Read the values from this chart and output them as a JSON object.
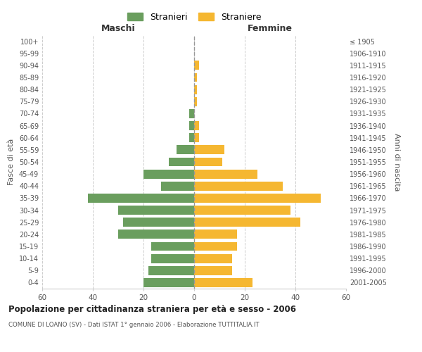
{
  "age_groups": [
    "0-4",
    "5-9",
    "10-14",
    "15-19",
    "20-24",
    "25-29",
    "30-34",
    "35-39",
    "40-44",
    "45-49",
    "50-54",
    "55-59",
    "60-64",
    "65-69",
    "70-74",
    "75-79",
    "80-84",
    "85-89",
    "90-94",
    "95-99",
    "100+"
  ],
  "birth_years": [
    "2001-2005",
    "1996-2000",
    "1991-1995",
    "1986-1990",
    "1981-1985",
    "1976-1980",
    "1971-1975",
    "1966-1970",
    "1961-1965",
    "1956-1960",
    "1951-1955",
    "1946-1950",
    "1941-1945",
    "1936-1940",
    "1931-1935",
    "1926-1930",
    "1921-1925",
    "1916-1920",
    "1911-1915",
    "1906-1910",
    "≤ 1905"
  ],
  "maschi": [
    20,
    18,
    17,
    17,
    30,
    28,
    30,
    42,
    13,
    20,
    10,
    7,
    2,
    2,
    2,
    0,
    0,
    0,
    0,
    0,
    0
  ],
  "femmine": [
    23,
    15,
    15,
    17,
    17,
    42,
    38,
    50,
    35,
    25,
    11,
    12,
    2,
    2,
    0,
    1,
    1,
    1,
    2,
    0,
    0
  ],
  "color_maschi": "#6a9e5e",
  "color_femmine": "#f5b731",
  "color_center_line": "#999999",
  "xlabel_left": "Maschi",
  "xlabel_right": "Femmine",
  "ylabel_left": "Fasce di età",
  "ylabel_right": "Anni di nascita",
  "title": "Popolazione per cittadinanza straniera per età e sesso - 2006",
  "subtitle": "COMUNE DI LOANO (SV) - Dati ISTAT 1° gennaio 2006 - Elaborazione TUTTITALIA.IT",
  "legend_stranieri": "Stranieri",
  "legend_straniere": "Straniere",
  "xlim": 60,
  "background_color": "#ffffff",
  "grid_color": "#cccccc"
}
